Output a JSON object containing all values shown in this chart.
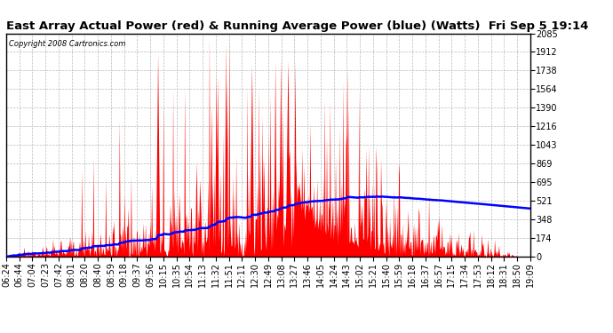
{
  "title": "East Array Actual Power (red) & Running Average Power (blue) (Watts)  Fri Sep 5 19:14",
  "copyright": "Copyright 2008 Cartronics.com",
  "yticks": [
    0.0,
    173.8,
    347.6,
    521.3,
    695.1,
    868.9,
    1042.7,
    1216.4,
    1390.2,
    1564.0,
    1737.8,
    1911.5,
    2085.3
  ],
  "ymax": 2085.3,
  "ymin": 0.0,
  "xlabel_times": [
    "06:24",
    "06:44",
    "07:04",
    "07:23",
    "07:42",
    "08:01",
    "08:20",
    "08:40",
    "08:59",
    "09:18",
    "09:37",
    "09:56",
    "10:15",
    "10:35",
    "10:54",
    "11:13",
    "11:32",
    "11:51",
    "12:11",
    "12:30",
    "12:49",
    "13:08",
    "13:27",
    "13:46",
    "14:05",
    "14:24",
    "14:43",
    "15:02",
    "15:21",
    "15:40",
    "15:59",
    "16:18",
    "16:37",
    "16:57",
    "17:15",
    "17:34",
    "17:53",
    "18:12",
    "18:31",
    "18:50",
    "19:09"
  ],
  "bg_color": "#ffffff",
  "plot_bg_color": "#ffffff",
  "grid_color": "#aaaaaa",
  "actual_color": "#ff0000",
  "avg_color": "#0000ff",
  "title_color": "#000000",
  "title_fontsize": 9.5,
  "copyright_fontsize": 6,
  "tick_fontsize": 7,
  "avg_linewidth": 1.8
}
